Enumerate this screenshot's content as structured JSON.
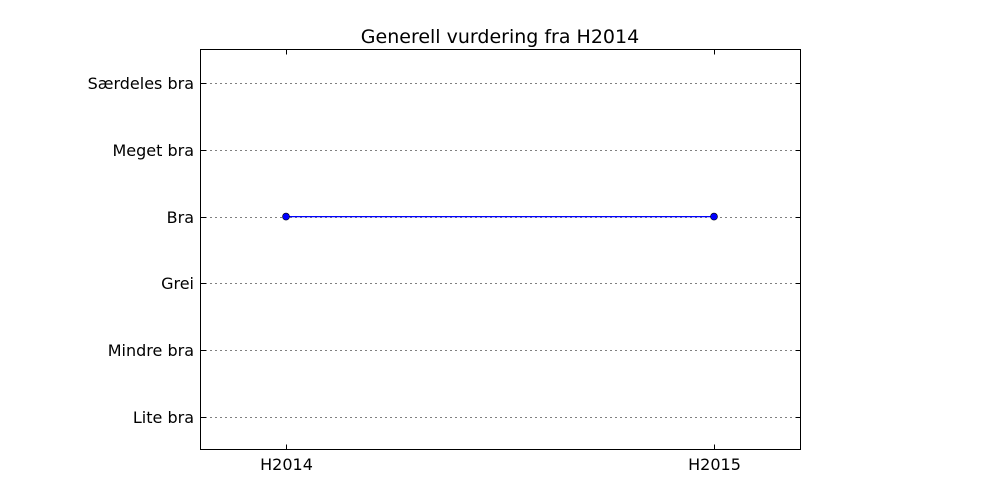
{
  "chart_data": {
    "type": "line",
    "title": "Generell vurdering fra H2014",
    "xlabel": "",
    "ylabel": "",
    "x_categories": [
      "H2014",
      "H2015"
    ],
    "y_categories": [
      "Lite bra",
      "Mindre bra",
      "Grei",
      "Bra",
      "Meget bra",
      "Særdeles bra"
    ],
    "series": [
      {
        "points": [
          {
            "x": "H2014",
            "y": "Bra"
          },
          {
            "x": "H2015",
            "y": "Bra"
          }
        ],
        "color": "#0000ff"
      }
    ],
    "y_grid": true,
    "x_grid": false,
    "legend": "none"
  }
}
